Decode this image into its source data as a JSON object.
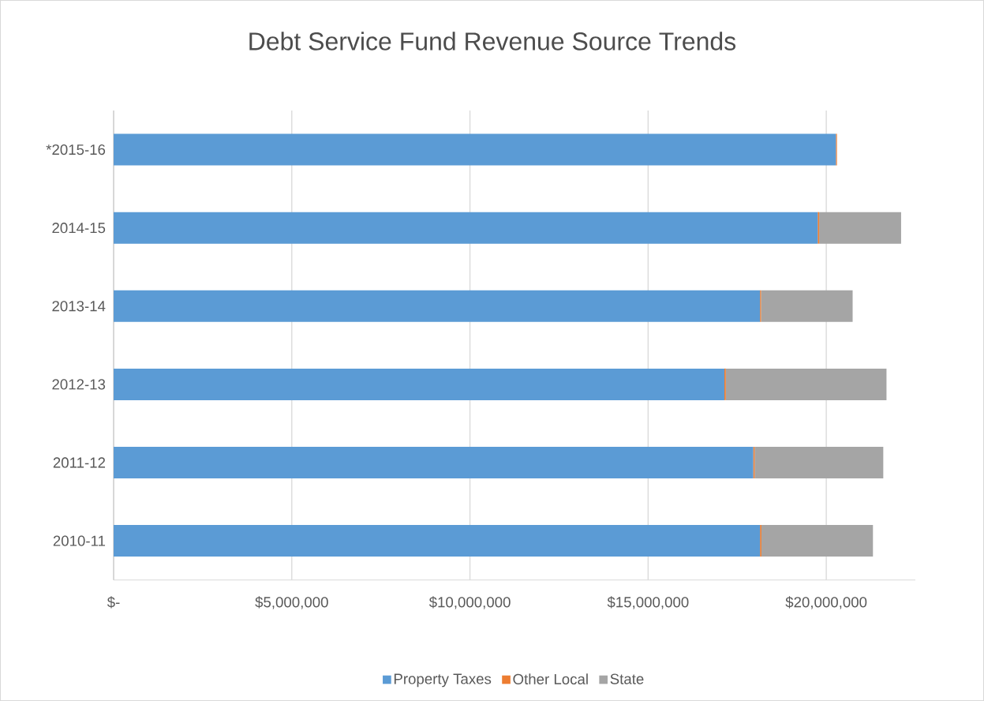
{
  "chart_data": {
    "type": "bar",
    "title": "Debt Service Fund Revenue Source Trends",
    "orientation": "horizontal",
    "stacked": true,
    "categories": [
      "*2015-16",
      "2014-15",
      "2013-14",
      "2012-13",
      "2011-12",
      "2010-11"
    ],
    "series": [
      {
        "name": "Property Taxes",
        "color": "#5b9bd5",
        "values": [
          20270000,
          19760000,
          18140000,
          17140000,
          17950000,
          18140000
        ]
      },
      {
        "name": "Other Local",
        "color": "#ed7d31",
        "values": [
          30000,
          40000,
          30000,
          40000,
          40000,
          40000
        ]
      },
      {
        "name": "State",
        "color": "#a5a5a5",
        "values": [
          0,
          2300000,
          2570000,
          4510000,
          3610000,
          3130000
        ]
      }
    ],
    "xlim": [
      0,
      22500000
    ],
    "xticks": [
      {
        "value": 0,
        "label": "$-"
      },
      {
        "value": 5000000,
        "label": "$5,000,000"
      },
      {
        "value": 10000000,
        "label": "$10,000,000"
      },
      {
        "value": 15000000,
        "label": "$15,000,000"
      },
      {
        "value": 20000000,
        "label": "$20,000,000"
      }
    ],
    "grid": "x",
    "legend": "bottom"
  }
}
